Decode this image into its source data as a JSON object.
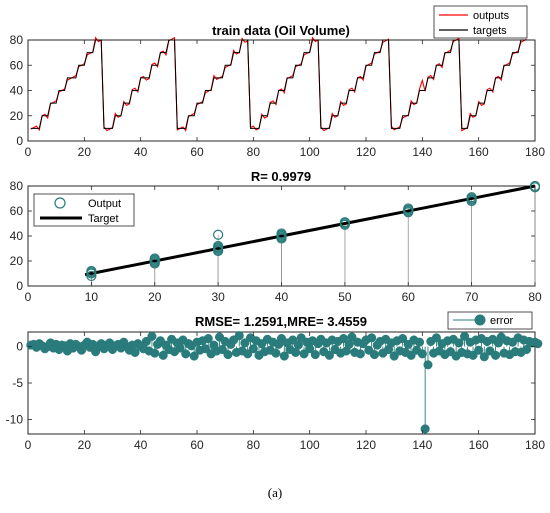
{
  "caption": "(a)",
  "colors": {
    "outputs": "#ff0000",
    "targets": "#000000",
    "teal": "#2a7b7b",
    "axis": "#262626"
  },
  "chart_data": [
    {
      "type": "line",
      "title": "train data (Oil Volume)",
      "xlim": [
        0,
        180
      ],
      "ylim": [
        0,
        80
      ],
      "xticks": [
        0,
        20,
        40,
        60,
        80,
        100,
        120,
        140,
        160,
        180
      ],
      "yticks": [
        0,
        20,
        40,
        60,
        80
      ],
      "grid": false,
      "legend": {
        "placement": "top-right",
        "entries": [
          "outputs",
          "targets"
        ]
      },
      "cycles": [
        {
          "start": 1,
          "end": 26
        },
        {
          "start": 27,
          "end": 52
        },
        {
          "start": 53,
          "end": 78
        },
        {
          "start": 79,
          "end": 103
        },
        {
          "start": 104,
          "end": 128
        },
        {
          "start": 129,
          "end": 153
        },
        {
          "start": 154,
          "end": 177
        }
      ],
      "levels": [
        10,
        20,
        30,
        40,
        50,
        60,
        70,
        80
      ],
      "series": [
        {
          "name": "outputs",
          "note_spike": {
            "x": 140,
            "y": 48
          }
        },
        {
          "name": "targets"
        }
      ]
    },
    {
      "type": "scatter",
      "title": "R= 0.9979",
      "xlim": [
        0,
        80
      ],
      "ylim": [
        0,
        80
      ],
      "xticks": [
        0,
        10,
        20,
        30,
        40,
        50,
        60,
        70,
        80
      ],
      "yticks": [
        0,
        20,
        40,
        60,
        80
      ],
      "legend": {
        "placement": "top-left",
        "entries": [
          "Output",
          "Target"
        ]
      },
      "target_line": {
        "x": [
          9,
          80
        ],
        "y": [
          9,
          80
        ]
      },
      "outputs": [
        {
          "x": 10,
          "y": 8
        },
        {
          "x": 10,
          "y": 10
        },
        {
          "x": 10,
          "y": 11
        },
        {
          "x": 10,
          "y": 12
        },
        {
          "x": 20,
          "y": 18
        },
        {
          "x": 20,
          "y": 19
        },
        {
          "x": 20,
          "y": 20
        },
        {
          "x": 20,
          "y": 21
        },
        {
          "x": 20,
          "y": 22
        },
        {
          "x": 30,
          "y": 28
        },
        {
          "x": 30,
          "y": 29
        },
        {
          "x": 30,
          "y": 30
        },
        {
          "x": 30,
          "y": 31
        },
        {
          "x": 30,
          "y": 32
        },
        {
          "x": 30,
          "y": 41
        },
        {
          "x": 40,
          "y": 38
        },
        {
          "x": 40,
          "y": 39
        },
        {
          "x": 40,
          "y": 40
        },
        {
          "x": 40,
          "y": 41
        },
        {
          "x": 40,
          "y": 42
        },
        {
          "x": 50,
          "y": 49
        },
        {
          "x": 50,
          "y": 50
        },
        {
          "x": 50,
          "y": 51
        },
        {
          "x": 60,
          "y": 59
        },
        {
          "x": 60,
          "y": 60
        },
        {
          "x": 60,
          "y": 61
        },
        {
          "x": 60,
          "y": 62
        },
        {
          "x": 70,
          "y": 68
        },
        {
          "x": 70,
          "y": 69
        },
        {
          "x": 70,
          "y": 70
        },
        {
          "x": 70,
          "y": 71
        },
        {
          "x": 80,
          "y": 79
        },
        {
          "x": 80,
          "y": 80
        }
      ]
    },
    {
      "type": "scatter",
      "title": "RMSE= 1.2591,MRE= 3.4559",
      "xlim": [
        0,
        180
      ],
      "ylim": [
        -12,
        2
      ],
      "xticks": [
        0,
        20,
        40,
        60,
        80,
        100,
        120,
        140,
        160,
        180
      ],
      "yticks": [
        -10,
        -5,
        0
      ],
      "legend": {
        "placement": "top-right",
        "entries": [
          "error"
        ]
      },
      "error_values": [
        0.2,
        0.3,
        -0.1,
        0.4,
        0.1,
        -0.3,
        0.0,
        0.5,
        -0.2,
        0.3,
        -0.4,
        0.2,
        0.1,
        -0.6,
        0.4,
        -0.2,
        0.3,
        0.0,
        -0.5,
        0.2,
        0.6,
        -0.1,
        0.3,
        -0.7,
        0.1,
        0.4,
        -0.3,
        0.2,
        0.5,
        -0.4,
        0.1,
        0.3,
        -0.2,
        0.6,
        0.0,
        -0.5,
        0.2,
        -0.8,
        0.4,
        0.1,
        -0.3,
        0.7,
        -0.6,
        1.4,
        -0.9,
        0.3,
        0.8,
        -1.2,
        0.2,
        -0.4,
        1.0,
        -0.7,
        0.5,
        -0.2,
        0.9,
        -1.0,
        0.4,
        0.1,
        -1.3,
        0.6,
        -0.5,
        0.8,
        -0.3,
        1.1,
        -1.0,
        0.2,
        -0.6,
        1.3,
        -0.4,
        0.7,
        -1.1,
        0.3,
        0.9,
        -0.8,
        1.5,
        -0.6,
        0.5,
        -1.0,
        1.2,
        -0.3,
        0.8,
        -1.2,
        0.4,
        -0.7,
        1.0,
        -0.5,
        0.6,
        -0.9,
        0.3,
        1.1,
        -1.3,
        0.5,
        -0.4,
        0.9,
        -0.8,
        0.2,
        1.2,
        -1.0,
        0.6,
        -0.3,
        0.8,
        -1.1,
        0.4,
        1.0,
        -0.7,
        0.5,
        -1.2,
        0.9,
        -0.4,
        0.7,
        -0.9,
        1.1,
        -0.6,
        0.3,
        1.3,
        -0.8,
        0.6,
        -1.0,
        0.4,
        0.9,
        -0.5,
        1.2,
        -1.1,
        0.2,
        0.7,
        -0.9,
        1.0,
        -0.4,
        0.5,
        -1.3,
        0.8,
        -0.6,
        1.1,
        -0.8,
        0.3,
        -1.2,
        0.9,
        -0.5,
        0.6,
        -1.0,
        -11.3,
        -2.5,
        0.7,
        -0.9,
        1.2,
        -0.6,
        0.4,
        -1.1,
        0.8,
        -0.7,
        1.0,
        -1.3,
        0.5,
        -0.8,
        1.4,
        -1.0,
        0.6,
        -1.2,
        0.9,
        -0.5,
        1.1,
        -1.4,
        0.7,
        -0.6,
        1.0,
        -1.2,
        0.5,
        1.3,
        -0.9,
        0.8,
        -1.1,
        0.6,
        -0.7,
        1.2,
        -0.8,
        0.9,
        -0.4,
        0.7,
        0.5,
        0.6,
        0.4
      ]
    }
  ]
}
